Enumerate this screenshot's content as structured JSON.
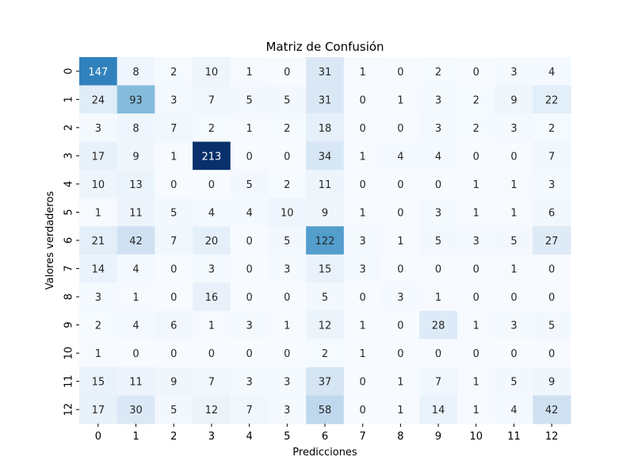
{
  "chart_data": {
    "type": "heatmap",
    "title": "Matriz de Confusión",
    "xlabel": "Predicciones",
    "ylabel": "Valores verdaderos",
    "x_categories": [
      "0",
      "1",
      "2",
      "3",
      "4",
      "5",
      "6",
      "7",
      "8",
      "9",
      "10",
      "11",
      "12"
    ],
    "y_categories": [
      "0",
      "1",
      "2",
      "3",
      "4",
      "5",
      "6",
      "7",
      "8",
      "9",
      "10",
      "11",
      "12"
    ],
    "values": [
      [
        147,
        8,
        2,
        10,
        1,
        0,
        31,
        1,
        0,
        2,
        0,
        3,
        4
      ],
      [
        24,
        93,
        3,
        7,
        5,
        5,
        31,
        0,
        1,
        3,
        2,
        9,
        22
      ],
      [
        3,
        8,
        7,
        2,
        1,
        2,
        18,
        0,
        0,
        3,
        2,
        3,
        2
      ],
      [
        17,
        9,
        1,
        213,
        0,
        0,
        34,
        1,
        4,
        4,
        0,
        0,
        7
      ],
      [
        10,
        13,
        0,
        0,
        5,
        2,
        11,
        0,
        0,
        0,
        1,
        1,
        3
      ],
      [
        1,
        11,
        5,
        4,
        4,
        10,
        9,
        1,
        0,
        3,
        1,
        1,
        6
      ],
      [
        21,
        42,
        7,
        20,
        0,
        5,
        122,
        3,
        1,
        5,
        3,
        5,
        27
      ],
      [
        14,
        4,
        0,
        3,
        0,
        3,
        15,
        3,
        0,
        0,
        0,
        1,
        0
      ],
      [
        3,
        1,
        0,
        16,
        0,
        0,
        5,
        0,
        3,
        1,
        0,
        0,
        0
      ],
      [
        2,
        4,
        6,
        1,
        3,
        1,
        12,
        1,
        0,
        28,
        1,
        3,
        5
      ],
      [
        1,
        0,
        0,
        0,
        0,
        0,
        2,
        1,
        0,
        0,
        0,
        0,
        0
      ],
      [
        15,
        11,
        9,
        7,
        3,
        3,
        37,
        0,
        1,
        7,
        1,
        5,
        9
      ],
      [
        17,
        30,
        5,
        12,
        7,
        3,
        58,
        0,
        1,
        14,
        1,
        4,
        42
      ]
    ],
    "colormap": "Blues",
    "vmin": 0,
    "vmax": 213,
    "colorbar": false,
    "grid": false
  }
}
